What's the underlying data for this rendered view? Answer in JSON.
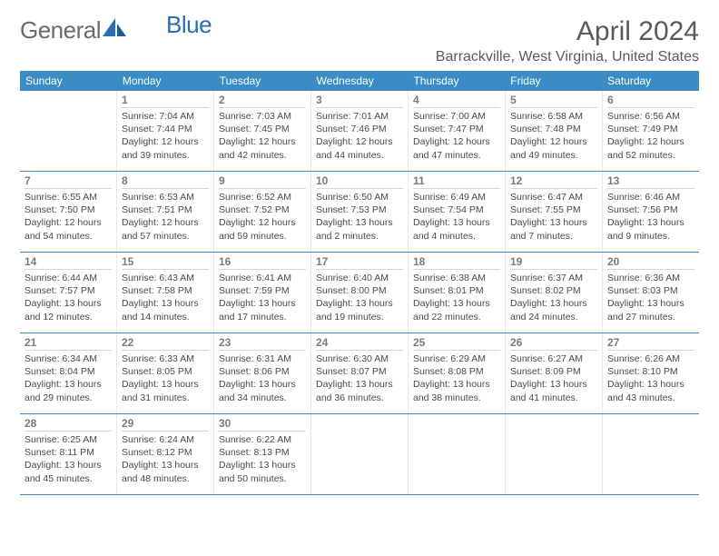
{
  "logo": {
    "text1": "General",
    "text2": "Blue"
  },
  "title": "April 2024",
  "location": "Barrackville, West Virginia, United States",
  "colors": {
    "header_bg": "#3b8bc4",
    "header_text": "#ffffff",
    "text": "#4a4a4a",
    "divider": "#3b8bc4",
    "logo_blue": "#2a6fb0"
  },
  "weekdays": [
    "Sunday",
    "Monday",
    "Tuesday",
    "Wednesday",
    "Thursday",
    "Friday",
    "Saturday"
  ],
  "weeks": [
    [
      {
        "day": "",
        "sunrise": "",
        "sunset": "",
        "daylight": ""
      },
      {
        "day": "1",
        "sunrise": "7:04 AM",
        "sunset": "7:44 PM",
        "daylight": "12 hours and 39 minutes."
      },
      {
        "day": "2",
        "sunrise": "7:03 AM",
        "sunset": "7:45 PM",
        "daylight": "12 hours and 42 minutes."
      },
      {
        "day": "3",
        "sunrise": "7:01 AM",
        "sunset": "7:46 PM",
        "daylight": "12 hours and 44 minutes."
      },
      {
        "day": "4",
        "sunrise": "7:00 AM",
        "sunset": "7:47 PM",
        "daylight": "12 hours and 47 minutes."
      },
      {
        "day": "5",
        "sunrise": "6:58 AM",
        "sunset": "7:48 PM",
        "daylight": "12 hours and 49 minutes."
      },
      {
        "day": "6",
        "sunrise": "6:56 AM",
        "sunset": "7:49 PM",
        "daylight": "12 hours and 52 minutes."
      }
    ],
    [
      {
        "day": "7",
        "sunrise": "6:55 AM",
        "sunset": "7:50 PM",
        "daylight": "12 hours and 54 minutes."
      },
      {
        "day": "8",
        "sunrise": "6:53 AM",
        "sunset": "7:51 PM",
        "daylight": "12 hours and 57 minutes."
      },
      {
        "day": "9",
        "sunrise": "6:52 AM",
        "sunset": "7:52 PM",
        "daylight": "12 hours and 59 minutes."
      },
      {
        "day": "10",
        "sunrise": "6:50 AM",
        "sunset": "7:53 PM",
        "daylight": "13 hours and 2 minutes."
      },
      {
        "day": "11",
        "sunrise": "6:49 AM",
        "sunset": "7:54 PM",
        "daylight": "13 hours and 4 minutes."
      },
      {
        "day": "12",
        "sunrise": "6:47 AM",
        "sunset": "7:55 PM",
        "daylight": "13 hours and 7 minutes."
      },
      {
        "day": "13",
        "sunrise": "6:46 AM",
        "sunset": "7:56 PM",
        "daylight": "13 hours and 9 minutes."
      }
    ],
    [
      {
        "day": "14",
        "sunrise": "6:44 AM",
        "sunset": "7:57 PM",
        "daylight": "13 hours and 12 minutes."
      },
      {
        "day": "15",
        "sunrise": "6:43 AM",
        "sunset": "7:58 PM",
        "daylight": "13 hours and 14 minutes."
      },
      {
        "day": "16",
        "sunrise": "6:41 AM",
        "sunset": "7:59 PM",
        "daylight": "13 hours and 17 minutes."
      },
      {
        "day": "17",
        "sunrise": "6:40 AM",
        "sunset": "8:00 PM",
        "daylight": "13 hours and 19 minutes."
      },
      {
        "day": "18",
        "sunrise": "6:38 AM",
        "sunset": "8:01 PM",
        "daylight": "13 hours and 22 minutes."
      },
      {
        "day": "19",
        "sunrise": "6:37 AM",
        "sunset": "8:02 PM",
        "daylight": "13 hours and 24 minutes."
      },
      {
        "day": "20",
        "sunrise": "6:36 AM",
        "sunset": "8:03 PM",
        "daylight": "13 hours and 27 minutes."
      }
    ],
    [
      {
        "day": "21",
        "sunrise": "6:34 AM",
        "sunset": "8:04 PM",
        "daylight": "13 hours and 29 minutes."
      },
      {
        "day": "22",
        "sunrise": "6:33 AM",
        "sunset": "8:05 PM",
        "daylight": "13 hours and 31 minutes."
      },
      {
        "day": "23",
        "sunrise": "6:31 AM",
        "sunset": "8:06 PM",
        "daylight": "13 hours and 34 minutes."
      },
      {
        "day": "24",
        "sunrise": "6:30 AM",
        "sunset": "8:07 PM",
        "daylight": "13 hours and 36 minutes."
      },
      {
        "day": "25",
        "sunrise": "6:29 AM",
        "sunset": "8:08 PM",
        "daylight": "13 hours and 38 minutes."
      },
      {
        "day": "26",
        "sunrise": "6:27 AM",
        "sunset": "8:09 PM",
        "daylight": "13 hours and 41 minutes."
      },
      {
        "day": "27",
        "sunrise": "6:26 AM",
        "sunset": "8:10 PM",
        "daylight": "13 hours and 43 minutes."
      }
    ],
    [
      {
        "day": "28",
        "sunrise": "6:25 AM",
        "sunset": "8:11 PM",
        "daylight": "13 hours and 45 minutes."
      },
      {
        "day": "29",
        "sunrise": "6:24 AM",
        "sunset": "8:12 PM",
        "daylight": "13 hours and 48 minutes."
      },
      {
        "day": "30",
        "sunrise": "6:22 AM",
        "sunset": "8:13 PM",
        "daylight": "13 hours and 50 minutes."
      },
      {
        "day": "",
        "sunrise": "",
        "sunset": "",
        "daylight": ""
      },
      {
        "day": "",
        "sunrise": "",
        "sunset": "",
        "daylight": ""
      },
      {
        "day": "",
        "sunrise": "",
        "sunset": "",
        "daylight": ""
      },
      {
        "day": "",
        "sunrise": "",
        "sunset": "",
        "daylight": ""
      }
    ]
  ],
  "labels": {
    "sunrise": "Sunrise:",
    "sunset": "Sunset:",
    "daylight": "Daylight:"
  }
}
